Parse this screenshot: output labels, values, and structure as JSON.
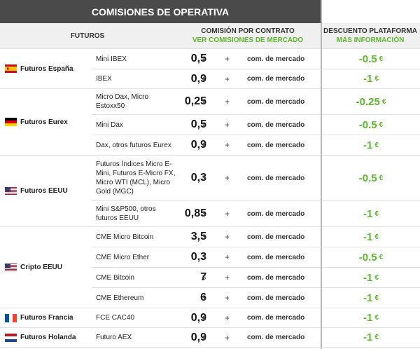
{
  "title": "COMISIONES DE OPERATIVA",
  "headers": {
    "futuros": "FUTUROS",
    "comision": "COMISIÓN POR CONTRATO",
    "comision_link": "VER COMISIONES DE MERCADO",
    "descuento": "DESCUENTO PLATAFORMA",
    "descuento_link": "MÁS INFORMACIÓN"
  },
  "groups": [
    {
      "label": "Futuros España",
      "flag": "spain-flag-icon",
      "rows": [
        {
          "product": "Mini IBEX",
          "commission": "0,5",
          "currency": "€",
          "plus": "+",
          "market": "com. de mercado",
          "discount": "-0.5",
          "discount_currency": "€"
        },
        {
          "product": "IBEX",
          "commission": "0,9",
          "currency": "€",
          "plus": "+",
          "market": "com. de mercado",
          "discount": "-1",
          "discount_currency": "€"
        }
      ]
    },
    {
      "label": "Futuros Eurex",
      "flag": "germany-flag-icon",
      "rows": [
        {
          "product": "Micro Dax, Micro Estoxx50",
          "commission": "0,25",
          "currency": "€",
          "plus": "+",
          "market": "com. de mercado",
          "discount": "-0.25",
          "discount_currency": "€"
        },
        {
          "product": "Mini Dax",
          "commission": "0,5",
          "currency": "€",
          "plus": "+",
          "market": "com. de mercado",
          "discount": "-0.5",
          "discount_currency": "€"
        },
        {
          "product": "Dax, otros futuros Eurex",
          "commission": "0,9",
          "currency": "€",
          "plus": "+",
          "market": "com. de mercado",
          "discount": "-1",
          "discount_currency": "€"
        }
      ]
    },
    {
      "label": "Futuros EEUU",
      "flag": "usa-flag-icon",
      "rows": [
        {
          "product": "Futuros Índices Micro E-Mini, Futuros E-Micro FX, Micro WTI (MCL), Micro Gold (MGC)",
          "commission": "0,3",
          "currency": "$",
          "plus": "+",
          "market": "com. de mercado",
          "discount": "-0.5",
          "discount_currency": "€"
        },
        {
          "product": "Mini S&P500, otros futuros EEUU",
          "commission": "0,85",
          "currency": "$",
          "plus": "+",
          "market": "com. de mercado",
          "discount": "-1",
          "discount_currency": "€"
        }
      ]
    },
    {
      "label": "Cripto EEUU",
      "flag": "usa-flag-icon",
      "rows": [
        {
          "product": "CME Micro Bitcoin",
          "commission": "3,5",
          "currency": "$",
          "plus": "+",
          "market": "com. de mercado",
          "discount": "-1",
          "discount_currency": "€"
        },
        {
          "product": "CME Micro Ether",
          "commission": "0,3",
          "currency": "$",
          "plus": "+",
          "market": "com. de mercado",
          "discount": "-0.5",
          "discount_currency": "€"
        },
        {
          "product": "CME Bitcoin",
          "commission": "7",
          "currency": "$",
          "plus": "+",
          "market": "com. de mercado",
          "discount": "-1",
          "discount_currency": "€"
        },
        {
          "product": "CME Ethereum",
          "commission": "6",
          "currency": "$",
          "plus": "+",
          "market": "com. de mercado",
          "discount": "-1",
          "discount_currency": "€"
        }
      ]
    },
    {
      "label": "Futuros Francia",
      "flag": "france-flag-icon",
      "rows": [
        {
          "product": "FCE CAC40",
          "commission": "0,9",
          "currency": "€",
          "plus": "+",
          "market": "com. de mercado",
          "discount": "-1",
          "discount_currency": "€"
        }
      ]
    },
    {
      "label": "Futuros Holanda",
      "flag": "netherlands-flag-icon",
      "rows": [
        {
          "product": "Futuro AEX",
          "commission": "0,9",
          "currency": "€",
          "plus": "+",
          "market": "com. de mercado",
          "discount": "-1",
          "discount_currency": "€"
        }
      ]
    }
  ],
  "colors": {
    "accent_green": "#5cb82e",
    "title_bg": "#4a4a4a",
    "header_bg": "#f0f0f0"
  }
}
